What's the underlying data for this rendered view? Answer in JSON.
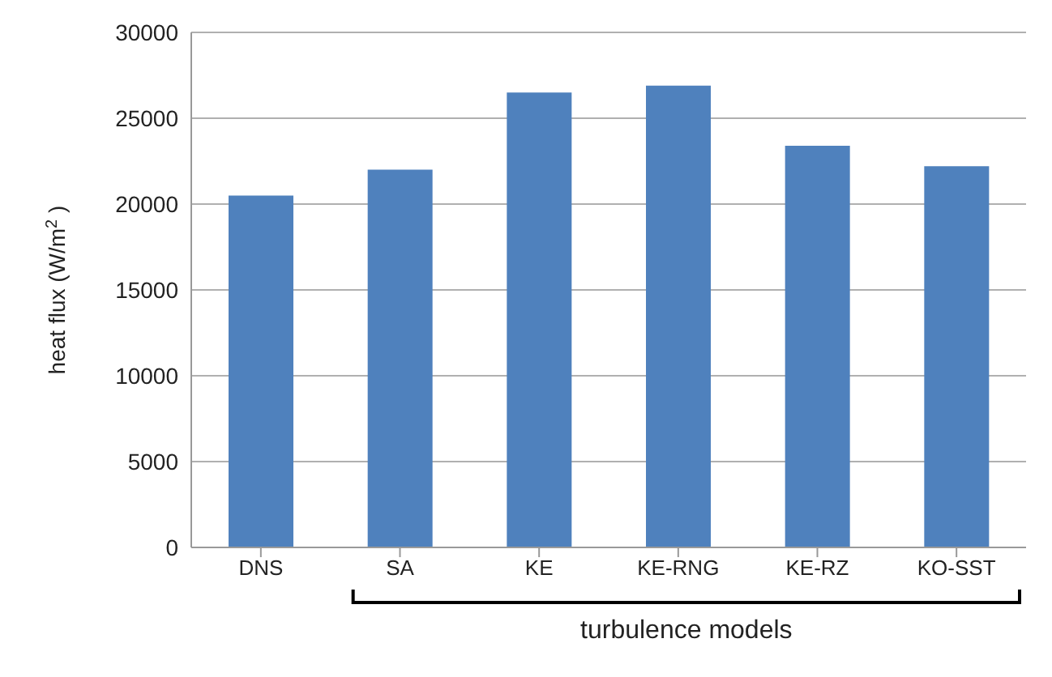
{
  "chart_data": {
    "type": "bar",
    "categories": [
      "DNS",
      "SA",
      "KE",
      "KE-RNG",
      "KE-RZ",
      "KO-SST"
    ],
    "values": [
      20500,
      22000,
      26500,
      26900,
      23400,
      22200
    ],
    "color": "#4f81bd",
    "ylabel": "heat flux (W/m$^{2}$ )",
    "ylim": [
      0,
      30000
    ],
    "yticks": [
      0,
      5000,
      10000,
      15000,
      20000,
      25000,
      30000
    ],
    "grid": "y",
    "annotations": [
      "turbulence models"
    ]
  }
}
